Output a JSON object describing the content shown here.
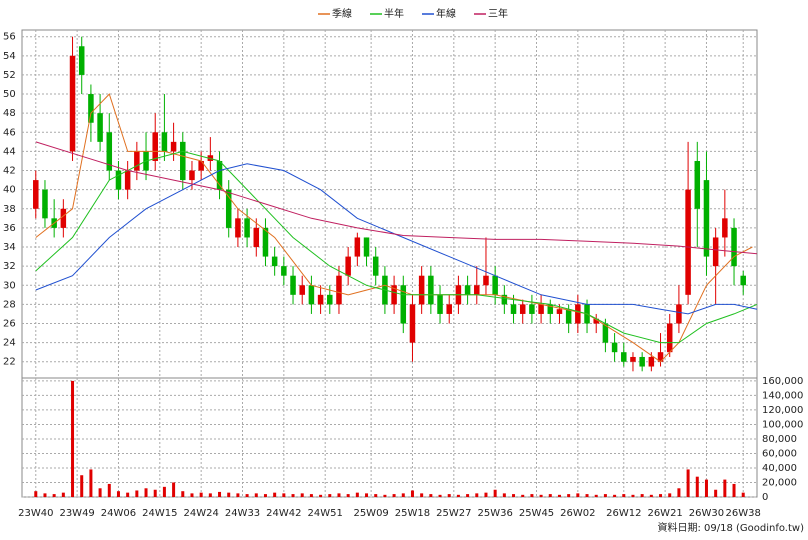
{
  "chart_data": {
    "type": "candlestick",
    "x": [
      0,
      2,
      4,
      6,
      8,
      10,
      12,
      14,
      16,
      18,
      20,
      22,
      24,
      26,
      28,
      30,
      32,
      34,
      36,
      38,
      40,
      42,
      44,
      46,
      48,
      50,
      52,
      54,
      56,
      58,
      60,
      62,
      64,
      66,
      68,
      70,
      72,
      74,
      76,
      78,
      80,
      82,
      84,
      86,
      88,
      90,
      92,
      94,
      96,
      98,
      100,
      102,
      104,
      106,
      108,
      110,
      112,
      114,
      116,
      118,
      120,
      122,
      124,
      126,
      128,
      130,
      132,
      134,
      136,
      138,
      140,
      142,
      144,
      146,
      148,
      150,
      152,
      154
    ],
    "open": [
      38,
      40,
      37,
      36,
      44,
      55,
      50,
      48,
      46,
      42,
      40,
      42,
      44,
      43,
      46,
      44,
      45,
      41,
      42,
      43,
      43,
      40,
      35,
      37,
      34,
      36,
      33,
      32,
      31,
      29,
      30,
      28,
      29,
      28,
      31,
      33,
      35,
      33,
      31,
      28,
      30,
      24,
      28,
      31,
      29,
      27,
      28,
      30,
      29,
      30,
      31,
      29,
      28,
      27,
      28,
      27,
      28,
      27,
      27.5,
      26,
      28,
      26,
      26,
      24,
      23,
      22,
      22.5,
      21.5,
      22,
      23,
      26,
      29,
      43,
      41,
      32,
      35,
      36,
      31
    ],
    "high": [
      42,
      41,
      39,
      39,
      56,
      56,
      51,
      50,
      48,
      43,
      43,
      45,
      46,
      48,
      50,
      47,
      46,
      43,
      44,
      45.5,
      44,
      41,
      38,
      38,
      37,
      37,
      34,
      33,
      32,
      31,
      31,
      30,
      30,
      32,
      34,
      35.5,
      35,
      34,
      32,
      31,
      31,
      29,
      32,
      32,
      30,
      29,
      31,
      31,
      32,
      35,
      32,
      30,
      29,
      28.5,
      29,
      29,
      28.5,
      28,
      28,
      29,
      28.5,
      27,
      26.5,
      25,
      24,
      23,
      23,
      23,
      25,
      27,
      30,
      45,
      45,
      44,
      36,
      40,
      37,
      31.5
    ],
    "low": [
      37,
      36,
      35,
      35,
      43,
      50,
      45,
      44,
      41,
      39,
      39,
      41,
      41,
      42,
      43,
      43,
      40,
      40,
      41,
      42,
      39,
      35,
      34,
      34,
      33,
      32,
      31,
      30,
      28,
      28,
      27,
      27,
      27,
      27,
      30,
      32,
      32,
      30,
      27,
      27,
      25,
      22,
      27,
      27,
      26,
      26,
      27,
      28,
      28,
      29,
      28,
      27,
      26,
      26,
      26,
      26,
      26,
      26,
      25,
      25,
      25,
      25,
      23,
      22,
      21.5,
      21,
      21,
      21,
      21.5,
      22.5,
      25,
      28,
      34,
      31,
      28,
      33,
      30,
      29
    ],
    "close": [
      41,
      37,
      36,
      38,
      54,
      52,
      47,
      45,
      42,
      40,
      42,
      44,
      42,
      46,
      44,
      45,
      41,
      42,
      43,
      43.6,
      40,
      36,
      37,
      35,
      36,
      33,
      32,
      31,
      29,
      30,
      28,
      29,
      28,
      31,
      33,
      35,
      33,
      31,
      28,
      30,
      26,
      28,
      31,
      28,
      27,
      28,
      30,
      29,
      30,
      31,
      29,
      28,
      27,
      28,
      27,
      28,
      27,
      27.5,
      26,
      28,
      26,
      26.5,
      24,
      23,
      22,
      22.5,
      21.5,
      22.5,
      23,
      26,
      28,
      40,
      38,
      33,
      35,
      37,
      32,
      30
    ],
    "volume": [
      8000,
      5000,
      4000,
      6000,
      160000,
      30000,
      38000,
      12000,
      18000,
      8000,
      6000,
      9000,
      12000,
      10000,
      14000,
      20000,
      8000,
      5000,
      6000,
      5000,
      7000,
      6000,
      5000,
      4000,
      5000,
      4000,
      6000,
      5000,
      4000,
      5000,
      4000,
      3000,
      4000,
      5000,
      4000,
      6000,
      5000,
      4000,
      3000,
      4000,
      5000,
      9000,
      5000,
      4000,
      3000,
      4000,
      3000,
      4000,
      5000,
      6000,
      10000,
      5000,
      4000,
      3000,
      4000,
      3000,
      4000,
      3000,
      4000,
      5000,
      4000,
      3000,
      4000,
      3000,
      4000,
      3000,
      4000,
      3000,
      4000,
      5000,
      12000,
      38000,
      28000,
      24000,
      10000,
      24000,
      18000,
      6000
    ],
    "up_color": "#e00000",
    "down_color": "#00b000",
    "volume_color": "#e00000",
    "series": [
      {
        "name": "季線",
        "color": "#e07020",
        "x": [
          0,
          8,
          12,
          16,
          20,
          28,
          36,
          44,
          52,
          60,
          68,
          76,
          82,
          90,
          100,
          110,
          120,
          130,
          136,
          140,
          146,
          152,
          156
        ],
        "values": [
          35,
          38,
          48,
          50,
          44,
          44,
          43,
          38,
          35,
          30,
          29,
          30,
          29,
          29,
          29,
          28,
          27,
          24,
          22,
          24,
          30,
          33,
          34
        ]
      },
      {
        "name": "半年",
        "color": "#20c020",
        "x": [
          0,
          8,
          16,
          24,
          32,
          40,
          48,
          56,
          64,
          72,
          80,
          88,
          96,
          104,
          112,
          120,
          128,
          136,
          140,
          146,
          152,
          157
        ],
        "values": [
          31.5,
          35,
          41,
          43,
          44,
          43,
          39,
          35,
          32,
          30,
          29,
          29,
          29,
          28.5,
          28,
          27,
          25,
          24,
          24,
          26,
          27,
          28
        ]
      },
      {
        "name": "年線",
        "color": "#2050d0",
        "x": [
          0,
          8,
          16,
          24,
          32,
          40,
          46,
          54,
          62,
          70,
          80,
          90,
          100,
          110,
          120,
          130,
          136,
          142,
          148,
          152,
          157
        ],
        "values": [
          29.5,
          31,
          35,
          38,
          40,
          42,
          42.7,
          42,
          40,
          37,
          35,
          33,
          31,
          29,
          28,
          28,
          27.5,
          27,
          28,
          28,
          27.5
        ]
      },
      {
        "name": "三年",
        "color": "#c02060",
        "x": [
          0,
          10,
          20,
          30,
          40,
          50,
          60,
          70,
          80,
          90,
          100,
          110,
          120,
          130,
          140,
          150,
          157
        ],
        "values": [
          45,
          43.5,
          42,
          41,
          40,
          38.5,
          37,
          36,
          35.2,
          35,
          34.8,
          34.8,
          34.6,
          34.4,
          34.1,
          33.6,
          33.3
        ]
      }
    ],
    "xlim": [
      -3,
      157
    ],
    "xticks": [
      {
        "value": 0,
        "label": "23W40"
      },
      {
        "value": 9,
        "label": "23W49"
      },
      {
        "value": 18,
        "label": "24W06"
      },
      {
        "value": 27,
        "label": "24W15"
      },
      {
        "value": 36,
        "label": "24W24"
      },
      {
        "value": 45,
        "label": "24W33"
      },
      {
        "value": 54,
        "label": "24W42"
      },
      {
        "value": 63,
        "label": "24W51"
      },
      {
        "value": 73,
        "label": "25W09"
      },
      {
        "value": 82,
        "label": "25W18"
      },
      {
        "value": 91,
        "label": "25W27"
      },
      {
        "value": 100,
        "label": "25W36"
      },
      {
        "value": 109,
        "label": "25W45"
      },
      {
        "value": 118,
        "label": "26W02"
      },
      {
        "value": 128,
        "label": "26W12"
      },
      {
        "value": 137,
        "label": "26W21"
      },
      {
        "value": 146,
        "label": "26W30"
      },
      {
        "value": 154,
        "label": "26W38"
      }
    ],
    "ylim": [
      20.3,
      56.7
    ],
    "yticks": [
      22,
      24,
      26,
      28,
      30,
      32,
      34,
      36,
      38,
      40,
      42,
      44,
      46,
      48,
      50,
      52,
      54,
      56
    ],
    "y2lim": [
      0,
      164000
    ],
    "y2ticks": [
      0,
      {
        "value": 20000,
        "label": "20,000"
      },
      {
        "value": 40000,
        "label": "40,000"
      },
      {
        "value": 60000,
        "label": "60,000"
      },
      {
        "value": 80000,
        "label": "80,000"
      },
      {
        "value": 100000,
        "label": "100,000"
      },
      {
        "value": 120000,
        "label": "120,000"
      },
      {
        "value": 140000,
        "label": "140,000"
      },
      {
        "value": 160000,
        "label": "160,000"
      }
    ],
    "grid": true,
    "footnote": "資料日期: 09/18  (Goodinfo.tw)"
  }
}
